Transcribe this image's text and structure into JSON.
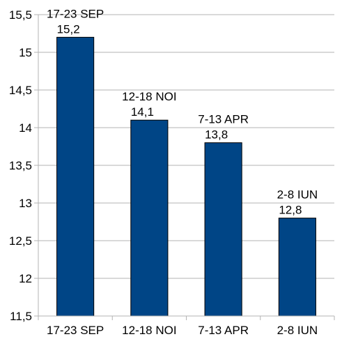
{
  "chart_data": {
    "type": "bar",
    "categories": [
      "17-23 SEP",
      "12-18 NOI",
      "7-13 APR",
      "2-8 IUN"
    ],
    "values": [
      15.2,
      14.1,
      13.8,
      12.8
    ],
    "value_labels": [
      "15,2",
      "14,1",
      "13,8",
      "12,8"
    ],
    "title": "",
    "xlabel": "",
    "ylabel": "",
    "ylim": [
      11.5,
      15.5
    ],
    "yticks": [
      11.5,
      12,
      12.5,
      13,
      13.5,
      14,
      14.5,
      15,
      15.5
    ],
    "ytick_labels": [
      "11,5",
      "12",
      "12,5",
      "13",
      "13,5",
      "14",
      "14,5",
      "15",
      "15,5"
    ],
    "grid": true,
    "legend": "none",
    "bar_color": "#004586",
    "grid_color": "#b3b3b3"
  }
}
